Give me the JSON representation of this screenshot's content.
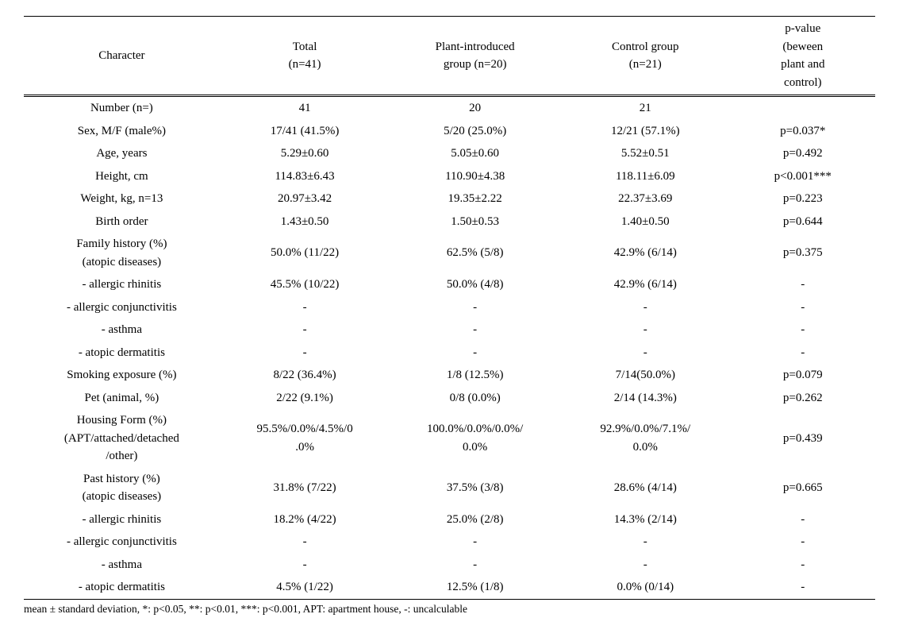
{
  "headers": {
    "character": "Character",
    "total": "Total\n(n=41)",
    "plant": "Plant-introduced\ngroup (n=20)",
    "control": "Control group\n(n=21)",
    "pvalue": "p-value\n(beween\nplant and\ncontrol)"
  },
  "rows": [
    {
      "character": "Number (n=)",
      "total": "41",
      "plant": "20",
      "control": "21",
      "pvalue": ""
    },
    {
      "character": "Sex, M/F (male%)",
      "total": "17/41 (41.5%)",
      "plant": "5/20 (25.0%)",
      "control": "12/21 (57.1%)",
      "pvalue": "p=0.037*"
    },
    {
      "character": "Age, years",
      "total": "5.29±0.60",
      "plant": "5.05±0.60",
      "control": "5.52±0.51",
      "pvalue": "p=0.492"
    },
    {
      "character": "Height, cm",
      "total": "114.83±6.43",
      "plant": "110.90±4.38",
      "control": "118.11±6.09",
      "pvalue": "p<0.001***"
    },
    {
      "character": "Weight, kg, n=13",
      "total": "20.97±3.42",
      "plant": "19.35±2.22",
      "control": "22.37±3.69",
      "pvalue": "p=0.223"
    },
    {
      "character": "Birth order",
      "total": "1.43±0.50",
      "plant": "1.50±0.53",
      "control": "1.40±0.50",
      "pvalue": "p=0.644"
    },
    {
      "character": "Family history (%)\n(atopic diseases)",
      "total": "50.0% (11/22)",
      "plant": "62.5% (5/8)",
      "control": "42.9% (6/14)",
      "pvalue": "p=0.375"
    },
    {
      "character": "- allergic rhinitis",
      "total": "45.5% (10/22)",
      "plant": "50.0% (4/8)",
      "control": "42.9% (6/14)",
      "pvalue": "-"
    },
    {
      "character": "- allergic conjunctivitis",
      "total": "-",
      "plant": "-",
      "control": "-",
      "pvalue": "-"
    },
    {
      "character": "- asthma",
      "total": "-",
      "plant": "-",
      "control": "-",
      "pvalue": "-"
    },
    {
      "character": "- atopic dermatitis",
      "total": "-",
      "plant": "-",
      "control": "-",
      "pvalue": "-"
    },
    {
      "character": "Smoking exposure (%)",
      "total": "8/22 (36.4%)",
      "plant": "1/8 (12.5%)",
      "control": "7/14(50.0%)",
      "pvalue": "p=0.079"
    },
    {
      "character": "Pet (animal, %)",
      "total": "2/22 (9.1%)",
      "plant": "0/8 (0.0%)",
      "control": "2/14 (14.3%)",
      "pvalue": "p=0.262"
    },
    {
      "character": "Housing Form (%)\n(APT/attached/detached\n/other)",
      "total": "95.5%/0.0%/4.5%/0\n.0%",
      "plant": "100.0%/0.0%/0.0%/\n0.0%",
      "control": "92.9%/0.0%/7.1%/\n0.0%",
      "pvalue": "p=0.439"
    },
    {
      "character": "Past history (%)\n(atopic diseases)",
      "total": "31.8% (7/22)",
      "plant": "37.5% (3/8)",
      "control": "28.6% (4/14)",
      "pvalue": "p=0.665"
    },
    {
      "character": "- allergic rhinitis",
      "total": "18.2% (4/22)",
      "plant": "25.0% (2/8)",
      "control": "14.3% (2/14)",
      "pvalue": "-"
    },
    {
      "character": "- allergic conjunctivitis",
      "total": "-",
      "plant": "-",
      "control": "-",
      "pvalue": "-"
    },
    {
      "character": "- asthma",
      "total": "-",
      "plant": "-",
      "control": "-",
      "pvalue": "-"
    },
    {
      "character": "- atopic dermatitis",
      "total": "4.5% (1/22)",
      "plant": "12.5% (1/8)",
      "control": "0.0% (0/14)",
      "pvalue": "-"
    }
  ],
  "footnote": "mean ± standard deviation, *: p<0.05, **: p<0.01, ***: p<0.001, APT: apartment house, -: uncalculable",
  "col_widths": [
    "23%",
    "20%",
    "20%",
    "20%",
    "17%"
  ]
}
